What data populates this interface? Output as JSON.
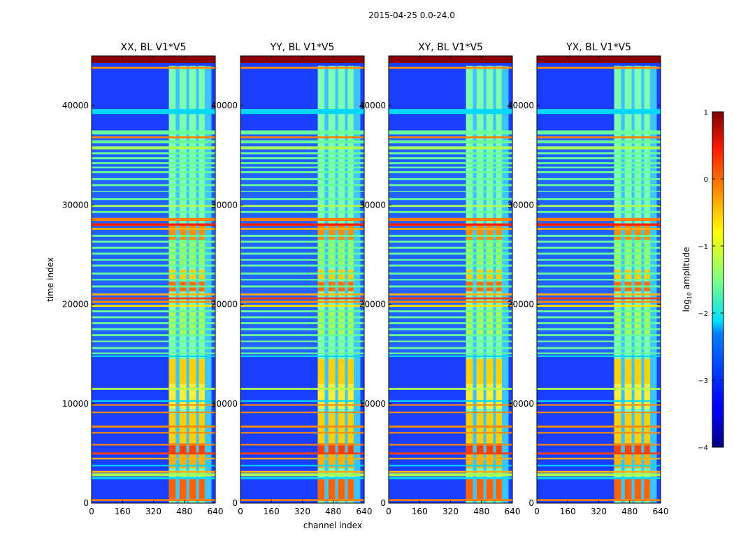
{
  "suptitle": "2015-04-25 0.0-24.0",
  "chart_data": {
    "type": "heatmap",
    "title": "2015-04-25 0.0-24.0",
    "xlabel": "channel index",
    "ylabel": "time index",
    "xlim": [
      0,
      640
    ],
    "ylim": [
      0,
      45000
    ],
    "xticks": [
      "0",
      "160",
      "320",
      "480",
      "640"
    ],
    "yticks": [
      "0",
      "10000",
      "20000",
      "30000",
      "40000"
    ],
    "panels": [
      {
        "title": "XX, BL V1*V5",
        "polarization": "XX"
      },
      {
        "title": "YY, BL V1*V5",
        "polarization": "YY"
      },
      {
        "title": "XY, BL V1*V5",
        "polarization": "XY"
      },
      {
        "title": "YX, BL V1*V5",
        "polarization": "YX"
      }
    ],
    "colorbar": {
      "label": "log10 amplitude",
      "label_base": "log",
      "label_sub": "10",
      "label_rest": " amplitude",
      "range": [
        -4,
        1
      ],
      "ticks": [
        "1",
        "0",
        "−1",
        "−2",
        "−3",
        "−4"
      ],
      "colormap": "jet"
    },
    "features": {
      "rfi_channel_band": [
        400,
        620
      ],
      "strong_time_bands": [
        [
          27500,
          28500
        ],
        [
          19700,
          21000
        ],
        [
          2600,
          3200
        ],
        [
          200,
          400
        ],
        [
          44300,
          45000
        ]
      ],
      "noisy_time_range": [
        14700,
        37500
      ]
    }
  }
}
